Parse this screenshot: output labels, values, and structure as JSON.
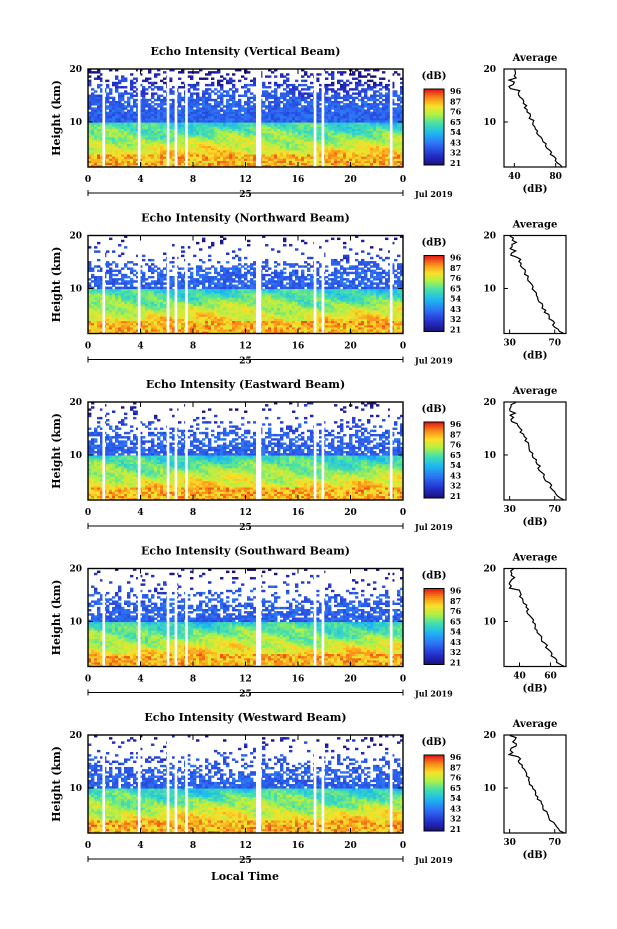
{
  "chart_data": [
    {
      "type": "heatmap",
      "title": "Echo Intensity (Vertical Beam)",
      "ylabel": "Height (km)",
      "y_ticks": [
        "20",
        "10"
      ],
      "ylim": [
        1.5,
        20
      ],
      "x_ticks": [
        "0",
        "4",
        "8",
        "12",
        "16",
        "20",
        "0"
      ],
      "xlim": [
        0,
        24
      ],
      "date_day": "25",
      "date_label": "Jul 2019",
      "colorbar": {
        "unit": "(dB)",
        "ticks": [
          "96",
          "87",
          "76",
          "65",
          "54",
          "43",
          "32",
          "21"
        ],
        "range": [
          21,
          96
        ]
      },
      "profile": {
        "title": "Average",
        "xlabel": "(dB)",
        "x_ticks": [
          "40",
          "80"
        ],
        "y_ticks": [
          "20",
          "10"
        ],
        "xlim": [
          30,
          90
        ],
        "ylim": [
          1.5,
          20
        ]
      },
      "gaps_hours": [
        [
          1.1,
          1.3
        ],
        [
          3.8,
          4.0
        ],
        [
          6.0,
          6.2
        ],
        [
          6.6,
          6.8
        ],
        [
          7.4,
          7.6
        ],
        [
          12.8,
          13.2
        ],
        [
          17.2,
          17.4
        ],
        [
          17.8,
          18.0
        ],
        [
          23.0,
          23.2
        ]
      ]
    },
    {
      "type": "heatmap",
      "title": "Echo Intensity (Northward Beam)",
      "ylabel": "Height (km)",
      "y_ticks": [
        "20",
        "10"
      ],
      "ylim": [
        1.5,
        20
      ],
      "x_ticks": [
        "0",
        "4",
        "8",
        "12",
        "16",
        "20",
        "0"
      ],
      "xlim": [
        0,
        24
      ],
      "date_day": "25",
      "date_label": "Jul 2019",
      "colorbar": {
        "unit": "(dB)",
        "ticks": [
          "96",
          "87",
          "76",
          "65",
          "54",
          "43",
          "32",
          "21"
        ],
        "range": [
          21,
          96
        ]
      },
      "profile": {
        "title": "Average",
        "xlabel": "(dB)",
        "x_ticks": [
          "30",
          "70"
        ],
        "y_ticks": [
          "20",
          "10"
        ],
        "xlim": [
          25,
          80
        ],
        "ylim": [
          1.5,
          20
        ]
      },
      "gaps_hours": [
        [
          1.1,
          1.3
        ],
        [
          3.8,
          4.0
        ],
        [
          6.0,
          6.2
        ],
        [
          6.6,
          6.8
        ],
        [
          7.4,
          7.6
        ],
        [
          12.8,
          13.2
        ],
        [
          17.2,
          17.4
        ],
        [
          17.8,
          18.0
        ],
        [
          23.0,
          23.2
        ]
      ]
    },
    {
      "type": "heatmap",
      "title": "Echo Intensity (Eastward Beam)",
      "ylabel": "Height (km)",
      "y_ticks": [
        "20",
        "10"
      ],
      "ylim": [
        1.5,
        20
      ],
      "x_ticks": [
        "0",
        "4",
        "8",
        "12",
        "16",
        "20",
        "0"
      ],
      "xlim": [
        0,
        24
      ],
      "date_day": "25",
      "date_label": "Jul 2019",
      "colorbar": {
        "unit": "(dB)",
        "ticks": [
          "96",
          "87",
          "76",
          "65",
          "54",
          "43",
          "32",
          "21"
        ],
        "range": [
          21,
          96
        ]
      },
      "profile": {
        "title": "Average",
        "xlabel": "(dB)",
        "x_ticks": [
          "30",
          "70"
        ],
        "y_ticks": [
          "20",
          "10"
        ],
        "xlim": [
          25,
          80
        ],
        "ylim": [
          1.5,
          20
        ]
      },
      "gaps_hours": [
        [
          1.1,
          1.3
        ],
        [
          3.8,
          4.0
        ],
        [
          6.0,
          6.2
        ],
        [
          6.6,
          6.8
        ],
        [
          7.4,
          7.6
        ],
        [
          12.8,
          13.2
        ],
        [
          17.2,
          17.4
        ],
        [
          17.8,
          18.0
        ],
        [
          23.0,
          23.2
        ]
      ]
    },
    {
      "type": "heatmap",
      "title": "Echo Intensity (Southward Beam)",
      "ylabel": "Height (km)",
      "y_ticks": [
        "20",
        "10"
      ],
      "ylim": [
        1.5,
        20
      ],
      "x_ticks": [
        "0",
        "4",
        "8",
        "12",
        "16",
        "20",
        "0"
      ],
      "xlim": [
        0,
        24
      ],
      "date_day": "25",
      "date_label": "Jul 2019",
      "colorbar": {
        "unit": "(dB)",
        "ticks": [
          "96",
          "87",
          "76",
          "65",
          "54",
          "43",
          "32",
          "21"
        ],
        "range": [
          21,
          96
        ]
      },
      "profile": {
        "title": "Average",
        "xlabel": "(dB)",
        "x_ticks": [
          "40",
          "60"
        ],
        "y_ticks": [
          "20",
          "10"
        ],
        "xlim": [
          30,
          70
        ],
        "ylim": [
          1.5,
          20
        ]
      },
      "gaps_hours": [
        [
          1.1,
          1.3
        ],
        [
          3.8,
          4.0
        ],
        [
          6.0,
          6.2
        ],
        [
          6.6,
          6.8
        ],
        [
          7.4,
          7.6
        ],
        [
          12.8,
          13.2
        ],
        [
          17.2,
          17.4
        ],
        [
          17.8,
          18.0
        ],
        [
          23.0,
          23.2
        ]
      ]
    },
    {
      "type": "heatmap",
      "title": "Echo Intensity (Westward Beam)",
      "ylabel": "Height (km)",
      "y_ticks": [
        "20",
        "10"
      ],
      "ylim": [
        1.5,
        20
      ],
      "x_ticks": [
        "0",
        "4",
        "8",
        "12",
        "16",
        "20",
        "0"
      ],
      "xlim": [
        0,
        24
      ],
      "date_day": "25",
      "date_label": "Jul 2019",
      "colorbar": {
        "unit": "(dB)",
        "ticks": [
          "96",
          "87",
          "76",
          "65",
          "54",
          "43",
          "32",
          "21"
        ],
        "range": [
          21,
          96
        ]
      },
      "profile": {
        "title": "Average",
        "xlabel": "(dB)",
        "x_ticks": [
          "30",
          "70"
        ],
        "y_ticks": [
          "20",
          "10"
        ],
        "xlim": [
          25,
          80
        ],
        "ylim": [
          1.5,
          20
        ]
      },
      "gaps_hours": [
        [
          1.1,
          1.3
        ],
        [
          3.8,
          4.0
        ],
        [
          6.0,
          6.2
        ],
        [
          6.6,
          6.8
        ],
        [
          7.4,
          7.6
        ],
        [
          12.8,
          13.2
        ],
        [
          17.2,
          17.4
        ],
        [
          17.8,
          18.0
        ],
        [
          23.0,
          23.2
        ]
      ]
    }
  ],
  "footer": {
    "xlabel": "Local Time"
  }
}
